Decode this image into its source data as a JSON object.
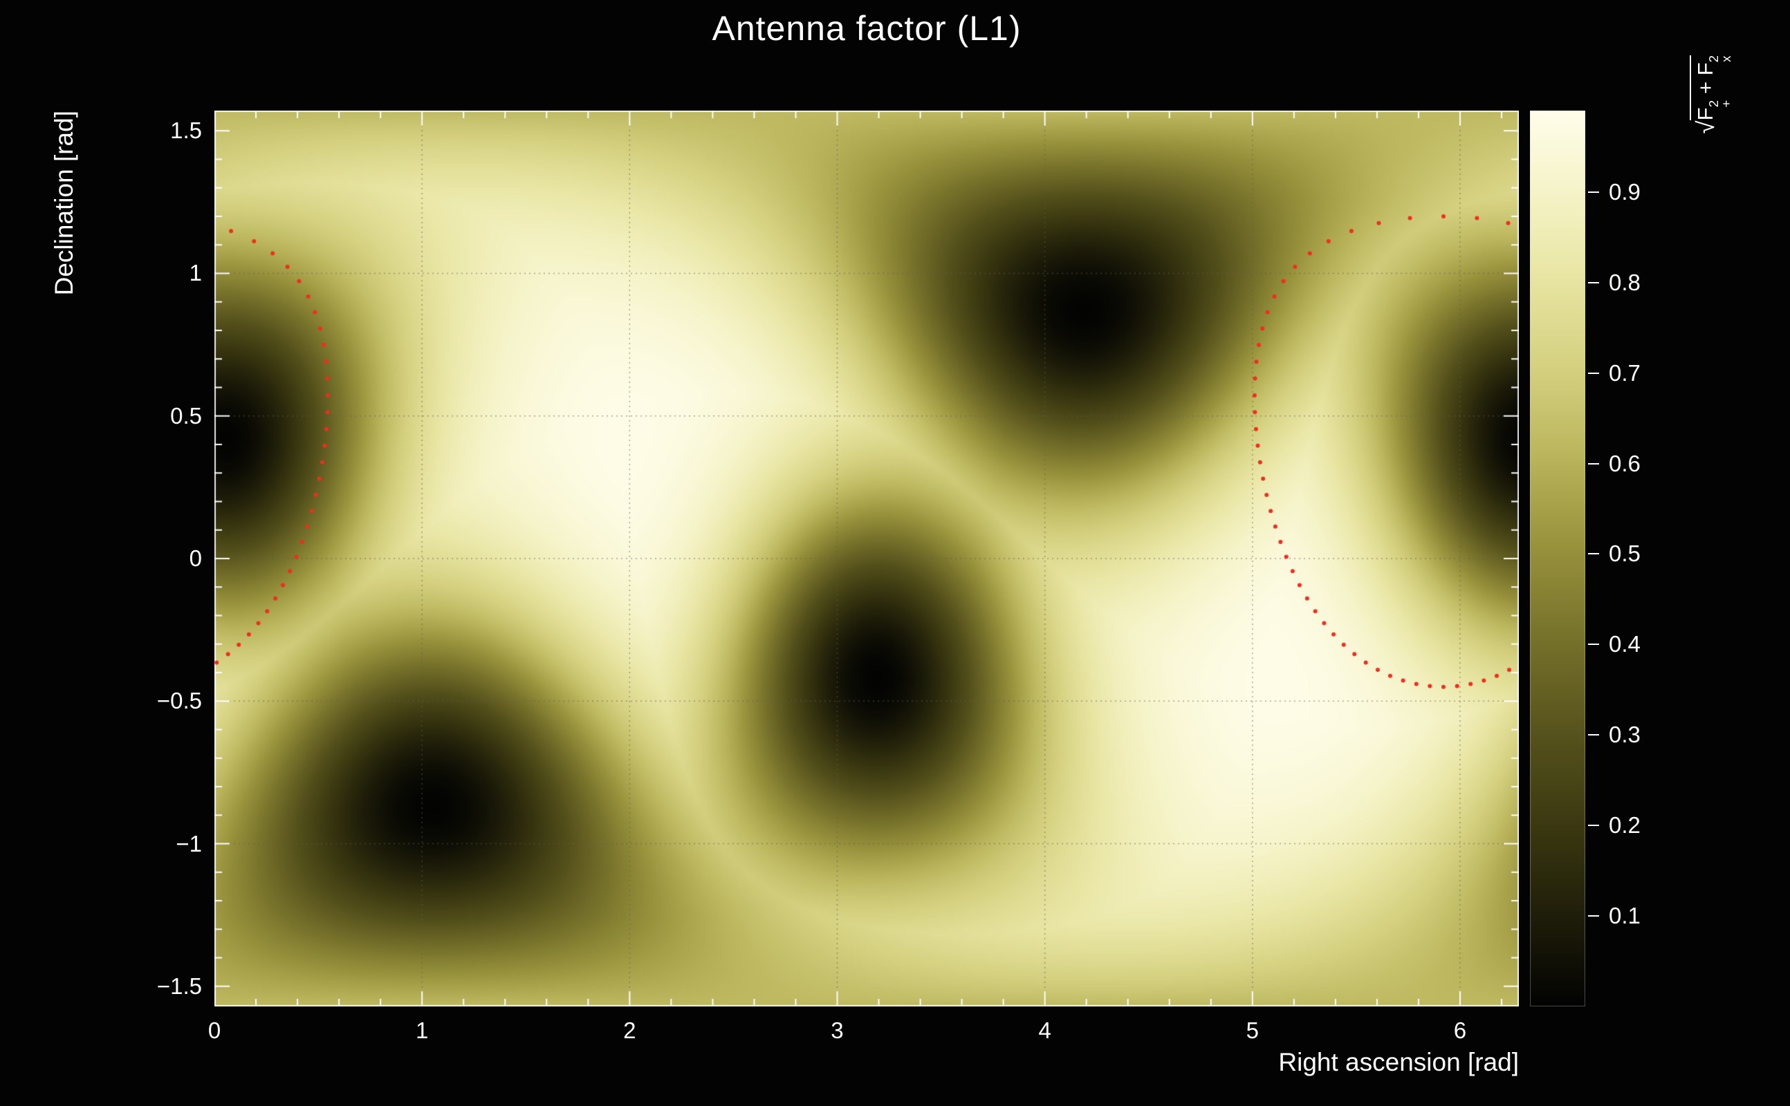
{
  "chart": {
    "title": "Antenna factor (L1)",
    "xlabel": "Right ascension [rad]",
    "ylabel": "Declination [rad]"
  },
  "chart_data": {
    "type": "heatmap",
    "title": "Antenna factor (L1)",
    "xlabel": "Right ascension [rad]",
    "ylabel": "Declination [rad]",
    "x_range": [
      0,
      6.2832
    ],
    "y_range": [
      -1.5708,
      1.5708
    ],
    "value_range": [
      0,
      0.99
    ],
    "grid": {
      "on": true,
      "x_step": 1,
      "y_step": 0.5,
      "color": "rgba(95,95,95,0.55)"
    },
    "x_ticks": {
      "values": [
        0,
        1,
        2,
        3,
        4,
        5,
        6
      ],
      "labels": [
        "0",
        "1",
        "2",
        "3",
        "4",
        "5",
        "6"
      ],
      "minor_step": 0.2
    },
    "y_ticks": {
      "values": [
        1.5,
        1,
        0.5,
        0,
        -0.5,
        -1,
        -1.5
      ],
      "labels": [
        "1.5",
        "1",
        "0.5",
        "0",
        "−0.5",
        "−1",
        "−1.5"
      ],
      "minor_step": 0.1
    },
    "colorbar": {
      "label": "sqrt(F+^2 + Fx^2)",
      "label_parts": {
        "radical": "√",
        "f1": "F",
        "sup1": "2",
        "sub_plus": "+",
        "plus": " + ",
        "f2": "F",
        "sup2": "2",
        "sub_cross": "x"
      },
      "zmax": 0.99,
      "ticks": {
        "values": [
          0.1,
          0.2,
          0.3,
          0.4,
          0.5,
          0.6,
          0.7,
          0.8,
          0.9
        ],
        "labels": [
          "0.1",
          "0.2",
          "0.3",
          "0.4",
          "0.5",
          "0.6",
          "0.7",
          "0.8",
          "0.9"
        ]
      },
      "colormap": [
        [
          0.0,
          "#020202"
        ],
        [
          0.08,
          "#191808"
        ],
        [
          0.18,
          "#35330f"
        ],
        [
          0.3,
          "#55511c"
        ],
        [
          0.42,
          "#79742c"
        ],
        [
          0.52,
          "#9a943e"
        ],
        [
          0.62,
          "#bcb75e"
        ],
        [
          0.72,
          "#d6d282"
        ],
        [
          0.82,
          "#e9e6a5"
        ],
        [
          0.9,
          "#f4f2c4"
        ],
        [
          1.0,
          "#fffdea"
        ]
      ]
    },
    "field": {
      "background_value": 0.82,
      "max_amplitude": 0.17,
      "max_sigma": 0.92,
      "null_depth": 0.995,
      "null_sigma": 0.45,
      "maxima": [
        {
          "ra": 2.1,
          "dec": 0.31,
          "value": 0.99
        },
        {
          "ra": 5.24,
          "dec": -0.31,
          "value": 0.99
        }
      ],
      "nulls": [
        {
          "ra": 1.05,
          "dec": -0.87,
          "value": 0.0
        },
        {
          "ra": 4.19,
          "dec": 0.87,
          "value": 0.0
        },
        {
          "ra": 3.19,
          "dec": -0.42,
          "value": 0.0
        },
        {
          "ra": 0.05,
          "dec": 0.42,
          "value": 0.0
        }
      ]
    },
    "contour": {
      "style": "dotted",
      "color": "#ef2e20",
      "center_ra": 5.92,
      "center_dec": 0.375,
      "radius": 0.825,
      "points": 78,
      "dot_radius": 3
    }
  }
}
